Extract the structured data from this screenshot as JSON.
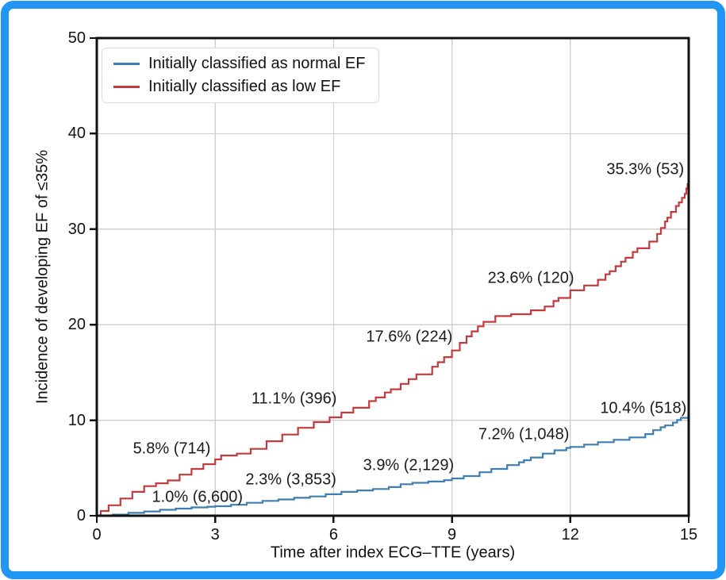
{
  "frame": {
    "border_color": "#2196f3",
    "background": "#ffffff"
  },
  "chart_data": {
    "type": "line",
    "subtype": "cumulative-incidence-step-curves",
    "title": "",
    "xlabel": "Time after index ECG–TTE (years)",
    "ylabel": "Incidence of developing EF of ≤35%",
    "xlim": [
      0,
      15
    ],
    "ylim": [
      0,
      50
    ],
    "xticks": [
      0,
      3,
      6,
      9,
      12,
      15
    ],
    "yticks": [
      0,
      10,
      20,
      30,
      40,
      50
    ],
    "grid": true,
    "grid_color": "#d0d0d0",
    "axis_color": "#111111",
    "legend_position": "upper-left",
    "series": [
      {
        "id": "normal-ef",
        "name": "Initially classified as normal EF",
        "color": "#3e7eb0",
        "step_height": 0.28,
        "milestones": {
          "years": [
            3,
            6,
            9,
            12,
            15
          ],
          "incidence_pct": [
            1.0,
            2.3,
            3.9,
            7.2,
            10.4
          ],
          "at_risk": [
            6600,
            3853,
            2129,
            1048,
            518
          ]
        },
        "waypoints": [
          [
            0,
            0
          ],
          [
            0.4,
            0.12
          ],
          [
            0.8,
            0.3
          ],
          [
            1.2,
            0.45
          ],
          [
            1.6,
            0.62
          ],
          [
            2.0,
            0.75
          ],
          [
            2.4,
            0.87
          ],
          [
            2.8,
            0.95
          ],
          [
            3.0,
            1.0
          ],
          [
            3.4,
            1.15
          ],
          [
            3.8,
            1.35
          ],
          [
            4.2,
            1.55
          ],
          [
            4.6,
            1.7
          ],
          [
            5.0,
            1.88
          ],
          [
            5.4,
            2.02
          ],
          [
            5.8,
            2.25
          ],
          [
            6.2,
            2.5
          ],
          [
            6.6,
            2.65
          ],
          [
            7.0,
            2.8
          ],
          [
            7.4,
            3.0
          ],
          [
            7.7,
            3.3
          ],
          [
            8.0,
            3.45
          ],
          [
            8.4,
            3.58
          ],
          [
            8.8,
            3.72
          ],
          [
            9.0,
            3.9
          ],
          [
            9.3,
            4.15
          ],
          [
            9.7,
            4.55
          ],
          [
            10.0,
            4.9
          ],
          [
            10.4,
            5.3
          ],
          [
            10.7,
            5.6
          ],
          [
            11.0,
            6.1
          ],
          [
            11.3,
            6.5
          ],
          [
            11.6,
            6.85
          ],
          [
            11.9,
            7.1
          ],
          [
            12.0,
            7.2
          ],
          [
            12.35,
            7.45
          ],
          [
            12.7,
            7.7
          ],
          [
            13.1,
            7.95
          ],
          [
            13.5,
            8.2
          ],
          [
            13.9,
            8.55
          ],
          [
            14.1,
            8.95
          ],
          [
            14.4,
            9.45
          ],
          [
            14.6,
            9.75
          ],
          [
            14.8,
            10.25
          ],
          [
            15.0,
            10.45
          ]
        ]
      },
      {
        "id": "low-ef",
        "name": "Initially classified as low EF",
        "color": "#c43a3e",
        "step_height": 0.55,
        "milestones": {
          "years": [
            3,
            6,
            9,
            12,
            15
          ],
          "incidence_pct": [
            5.8,
            11.1,
            17.6,
            23.6,
            35.3
          ],
          "at_risk": [
            714,
            396,
            224,
            120,
            53
          ]
        },
        "waypoints": [
          [
            0,
            0
          ],
          [
            0.1,
            0.5
          ],
          [
            0.3,
            1.1
          ],
          [
            0.6,
            1.8
          ],
          [
            0.9,
            2.5
          ],
          [
            1.2,
            3.1
          ],
          [
            1.5,
            3.4
          ],
          [
            1.8,
            3.7
          ],
          [
            2.1,
            4.3
          ],
          [
            2.4,
            4.9
          ],
          [
            2.7,
            5.4
          ],
          [
            3.0,
            5.9
          ],
          [
            3.15,
            6.3
          ],
          [
            3.55,
            6.5
          ],
          [
            3.9,
            7.0
          ],
          [
            4.3,
            7.8
          ],
          [
            4.7,
            8.5
          ],
          [
            5.1,
            9.2
          ],
          [
            5.5,
            9.8
          ],
          [
            5.9,
            10.3
          ],
          [
            6.2,
            10.8
          ],
          [
            6.5,
            11.3
          ],
          [
            6.9,
            12.0
          ],
          [
            7.3,
            12.9
          ],
          [
            7.7,
            13.8
          ],
          [
            8.1,
            14.8
          ],
          [
            8.5,
            15.6
          ],
          [
            8.8,
            16.6
          ],
          [
            9.0,
            17.3
          ],
          [
            9.2,
            18.1
          ],
          [
            9.5,
            19.3
          ],
          [
            9.8,
            20.3
          ],
          [
            10.1,
            20.9
          ],
          [
            10.5,
            21.1
          ],
          [
            11.0,
            21.5
          ],
          [
            11.35,
            21.9
          ],
          [
            11.7,
            22.8
          ],
          [
            12.0,
            23.6
          ],
          [
            12.35,
            24.1
          ],
          [
            12.7,
            24.7
          ],
          [
            13.0,
            25.6
          ],
          [
            13.4,
            27.0
          ],
          [
            13.7,
            28.0
          ],
          [
            14.0,
            28.7
          ],
          [
            14.2,
            29.5
          ],
          [
            14.4,
            30.8
          ],
          [
            14.55,
            31.8
          ],
          [
            14.75,
            32.8
          ],
          [
            14.9,
            33.7
          ],
          [
            15.0,
            35.1
          ]
        ]
      }
    ],
    "annotations": [
      {
        "series": "normal-ef",
        "text": "1.0% (6,600)",
        "x": 2.55,
        "y": 1.9
      },
      {
        "series": "normal-ef",
        "text": "2.3% (3,853)",
        "x": 4.92,
        "y": 3.75
      },
      {
        "series": "normal-ef",
        "text": "3.9% (2,129)",
        "x": 7.9,
        "y": 5.25
      },
      {
        "series": "normal-ef",
        "text": "7.2% (1,048)",
        "x": 10.82,
        "y": 8.5
      },
      {
        "series": "normal-ef",
        "text": "10.4% (518)",
        "x": 13.85,
        "y": 11.2
      },
      {
        "series": "low-ef",
        "text": "5.8% (714)",
        "x": 1.9,
        "y": 7.0
      },
      {
        "series": "low-ef",
        "text": "11.1% (396)",
        "x": 5.0,
        "y": 12.2
      },
      {
        "series": "low-ef",
        "text": "17.6% (224)",
        "x": 7.92,
        "y": 18.7
      },
      {
        "series": "low-ef",
        "text": "23.6% (120)",
        "x": 11.0,
        "y": 24.8
      },
      {
        "series": "low-ef",
        "text": "35.3% (53)",
        "x": 13.9,
        "y": 36.2
      }
    ]
  },
  "legend": {
    "items": [
      {
        "label": "Initially classified as normal EF",
        "color": "#3e7eb0"
      },
      {
        "label": "Initially classified as low EF",
        "color": "#c43a3e"
      }
    ]
  }
}
